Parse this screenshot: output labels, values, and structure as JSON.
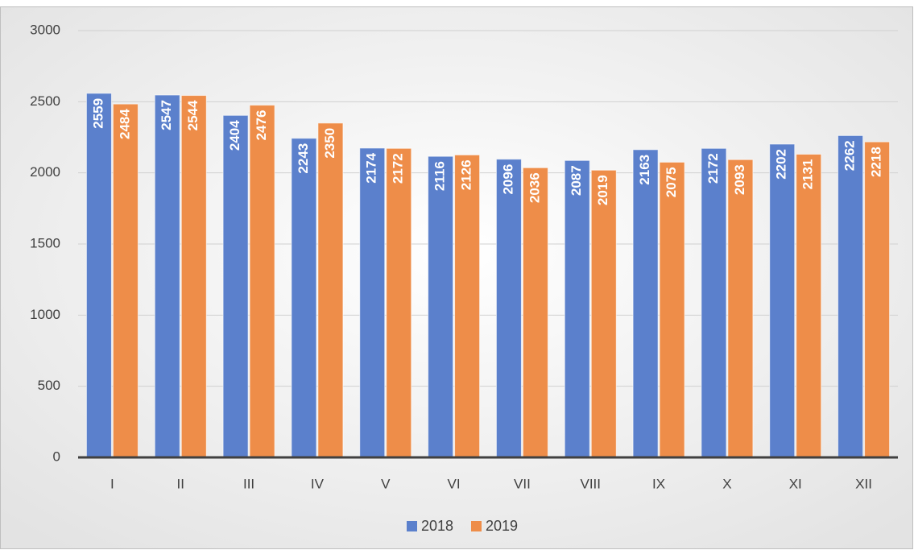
{
  "chart_data": {
    "type": "bar",
    "categories": [
      "I",
      "II",
      "III",
      "IV",
      "V",
      "VI",
      "VII",
      "VIII",
      "IX",
      "X",
      "XI",
      "XII"
    ],
    "series": [
      {
        "name": "2018",
        "color": "#5b80cc",
        "values": [
          2559,
          2547,
          2404,
          2243,
          2174,
          2116,
          2096,
          2087,
          2163,
          2172,
          2202,
          2262
        ]
      },
      {
        "name": "2019",
        "color": "#ee8d49",
        "values": [
          2484,
          2544,
          2476,
          2350,
          2172,
          2126,
          2036,
          2019,
          2075,
          2093,
          2131,
          2218
        ]
      }
    ],
    "ylim": [
      0,
      3000
    ],
    "yticks": [
      0,
      500,
      1000,
      1500,
      2000,
      2500,
      3000
    ],
    "grid": true,
    "legend": "bottom"
  }
}
